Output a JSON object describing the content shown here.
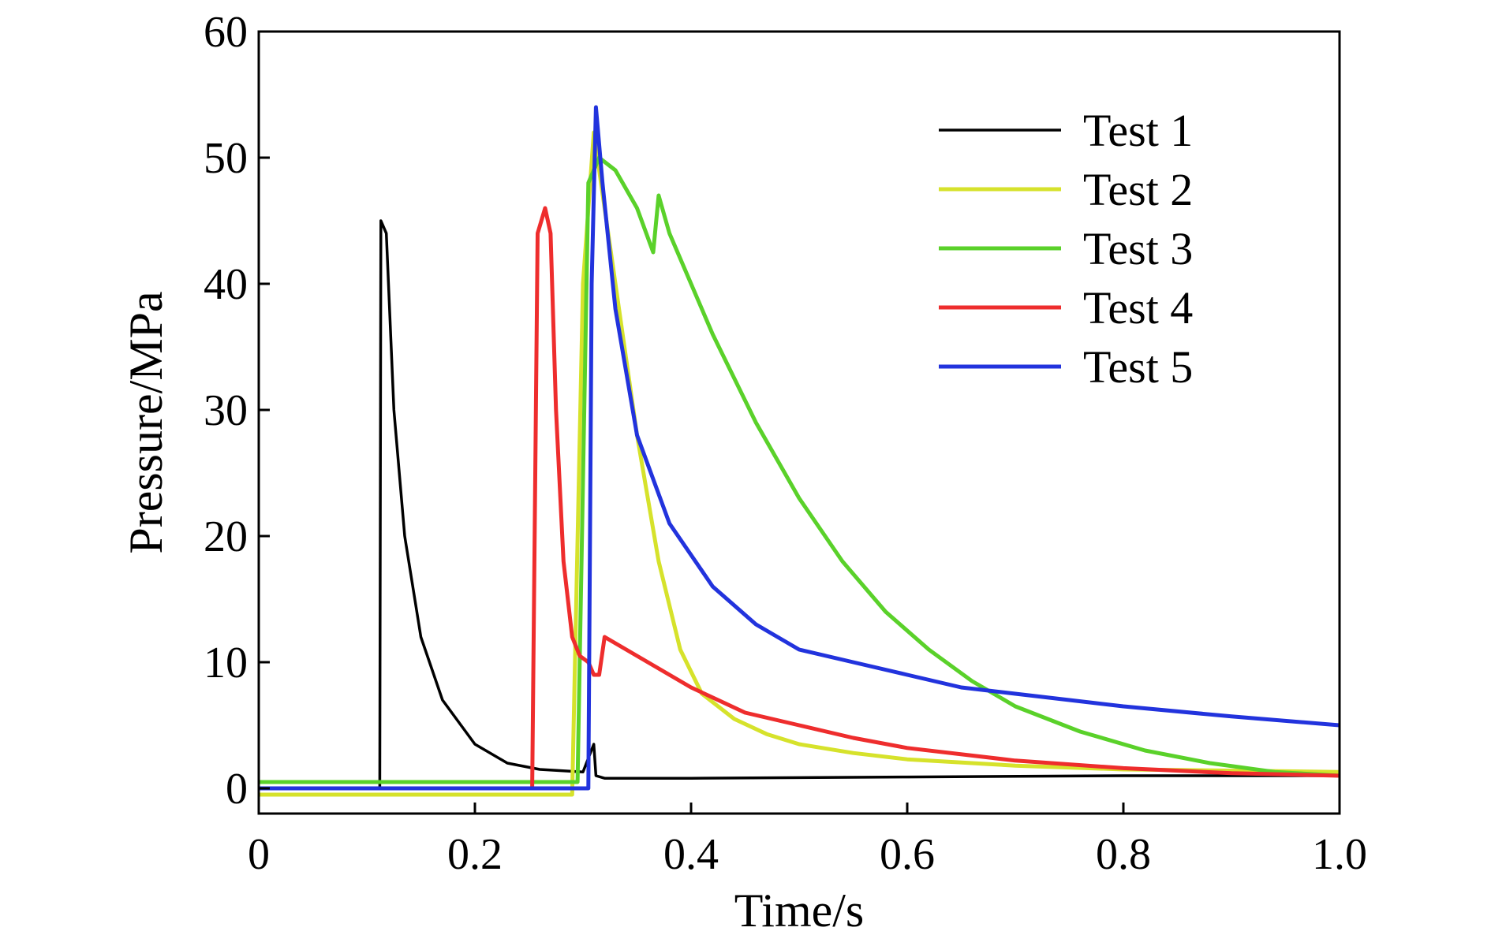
{
  "chart_data": {
    "type": "line",
    "xlabel": "Time/s",
    "ylabel": "Pressure/MPa",
    "xlim": [
      0,
      1.0
    ],
    "ylim": [
      -2,
      60
    ],
    "xticks": [
      "0",
      "0.2",
      "0.4",
      "0.6",
      "0.8",
      "1.0"
    ],
    "yticks": [
      "0",
      "10",
      "20",
      "30",
      "40",
      "50",
      "60"
    ],
    "grid": false,
    "legend_position": "top-right",
    "series": [
      {
        "name": "Test 1",
        "color": "#000000",
        "x": [
          0,
          0.112,
          0.113,
          0.118,
          0.125,
          0.135,
          0.15,
          0.17,
          0.2,
          0.23,
          0.26,
          0.3,
          0.31,
          0.312,
          0.32,
          0.4,
          0.6,
          0.8,
          1.0
        ],
        "y": [
          0,
          0,
          45,
          44,
          30,
          20,
          12,
          7,
          3.5,
          2,
          1.5,
          1.3,
          3.5,
          1,
          0.8,
          0.8,
          0.9,
          1,
          1
        ]
      },
      {
        "name": "Test 2",
        "color": "#d6e22b",
        "x": [
          0,
          0.29,
          0.3,
          0.31,
          0.33,
          0.35,
          0.37,
          0.39,
          0.41,
          0.44,
          0.47,
          0.5,
          0.55,
          0.6,
          0.7,
          0.8,
          1.0
        ],
        "y": [
          -0.5,
          -0.5,
          40,
          52,
          40,
          28,
          18,
          11,
          7.5,
          5.5,
          4.3,
          3.5,
          2.8,
          2.3,
          1.8,
          1.5,
          1.3
        ]
      },
      {
        "name": "Test 3",
        "color": "#5ad12a",
        "x": [
          0,
          0.295,
          0.305,
          0.315,
          0.33,
          0.35,
          0.365,
          0.37,
          0.38,
          0.42,
          0.46,
          0.5,
          0.54,
          0.58,
          0.62,
          0.66,
          0.7,
          0.76,
          0.82,
          0.88,
          0.94,
          1.0
        ],
        "y": [
          0.5,
          0.5,
          48,
          50,
          49,
          46,
          42.5,
          47,
          44,
          36,
          29,
          23,
          18,
          14,
          11,
          8.5,
          6.5,
          4.5,
          3,
          2,
          1.3,
          1
        ]
      },
      {
        "name": "Test 4",
        "color": "#ee2d2d",
        "x": [
          0,
          0.253,
          0.258,
          0.265,
          0.27,
          0.275,
          0.282,
          0.29,
          0.297,
          0.305,
          0.31,
          0.315,
          0.32,
          0.36,
          0.4,
          0.45,
          0.5,
          0.55,
          0.6,
          0.7,
          0.8,
          0.9,
          1.0
        ],
        "y": [
          0,
          0,
          44,
          46,
          44,
          30,
          18,
          12,
          10.5,
          10,
          9,
          9,
          12,
          10,
          8,
          6,
          5,
          4,
          3.2,
          2.2,
          1.6,
          1.2,
          1
        ]
      },
      {
        "name": "Test 5",
        "color": "#2233dd",
        "x": [
          0,
          0.305,
          0.308,
          0.312,
          0.318,
          0.33,
          0.35,
          0.38,
          0.42,
          0.46,
          0.5,
          0.55,
          0.6,
          0.65,
          0.7,
          0.8,
          0.9,
          1.0
        ],
        "y": [
          0,
          0,
          40,
          54,
          48,
          38,
          28,
          21,
          16,
          13,
          11,
          10,
          9,
          8,
          7.5,
          6.5,
          5.7,
          5
        ]
      }
    ]
  }
}
